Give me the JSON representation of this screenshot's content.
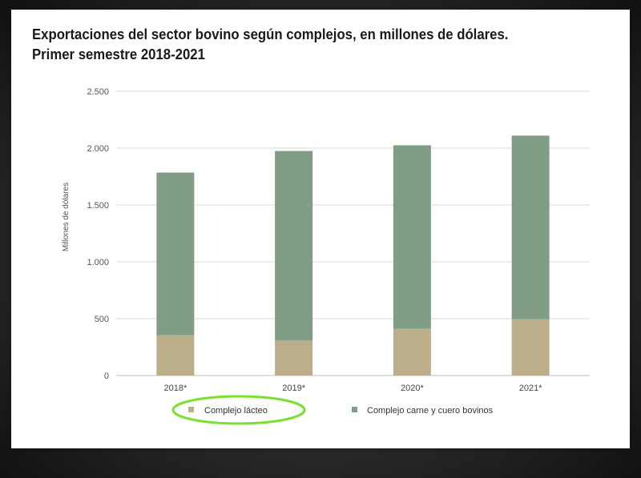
{
  "colors": {
    "dairy": "#bdae8b",
    "beef": "#809e86",
    "grid": "#d9d9d9",
    "highlight": "#7ae02e"
  },
  "chart_data": {
    "type": "bar",
    "stacked": true,
    "title": "Exportaciones del sector bovino según complejos, en millones de dólares.",
    "subtitle": "Primer semestre 2018-2021",
    "xlabel": "",
    "ylabel": "Millones de dólares",
    "categories": [
      "2018*",
      "2019*",
      "2020*",
      "2021*"
    ],
    "ylim": [
      0,
      2500
    ],
    "ytick_values": [
      0,
      500,
      1000,
      1500,
      2000,
      2500
    ],
    "ytick_labels": [
      "0",
      "500",
      "1.000",
      "1.500",
      "2.000",
      "2.500"
    ],
    "grid": true,
    "legend_position": "bottom",
    "series": [
      {
        "name": "Complejo lácteo",
        "color": "#bdae8b",
        "values": [
          355,
          310,
          410,
          495
        ]
      },
      {
        "name": "Complejo carne y cuero bovinos",
        "color": "#809e86",
        "values": [
          1430,
          1665,
          1615,
          1615
        ]
      }
    ]
  }
}
